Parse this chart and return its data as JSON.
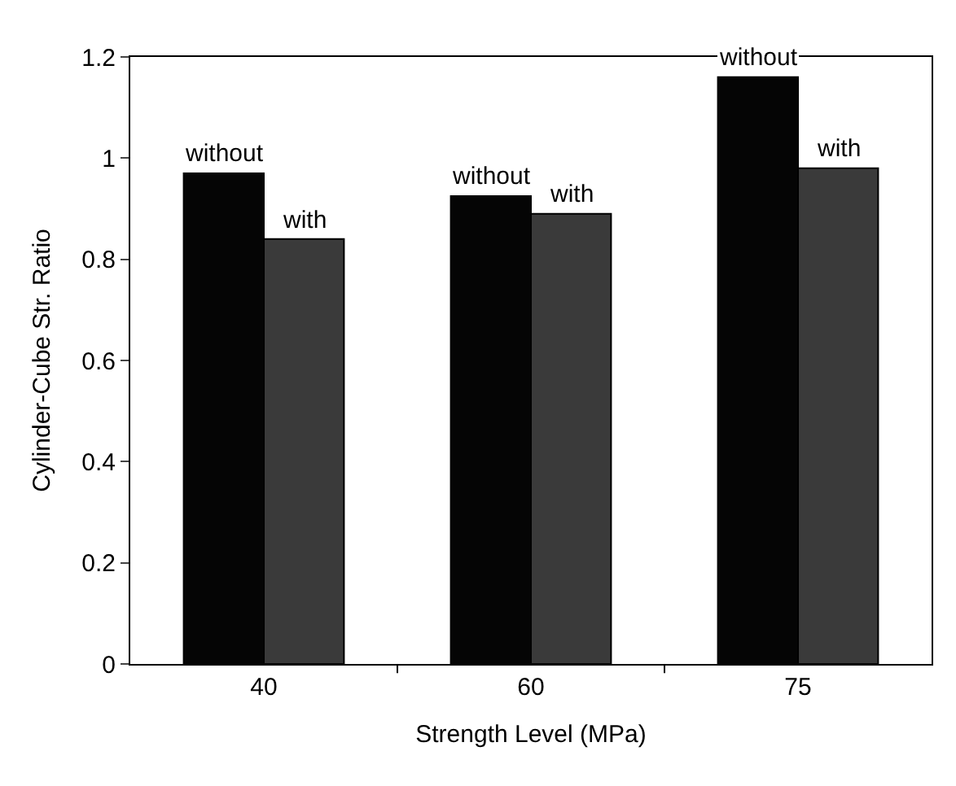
{
  "chart_data": {
    "type": "bar",
    "xlabel": "Strength Level (MPa)",
    "ylabel": "Cylinder-Cube Str. Ratio",
    "categories": [
      "40",
      "60",
      "75"
    ],
    "series": [
      {
        "name": "without",
        "color": "#050505",
        "values": [
          0.97,
          0.925,
          1.16
        ]
      },
      {
        "name": "with",
        "color": "#3a3a3a",
        "values": [
          0.84,
          0.89,
          0.98
        ]
      }
    ],
    "ylim": [
      0,
      1.2
    ],
    "yticks": [
      0,
      0.2,
      0.4,
      0.6,
      0.8,
      1,
      1.2
    ],
    "legend": false
  }
}
